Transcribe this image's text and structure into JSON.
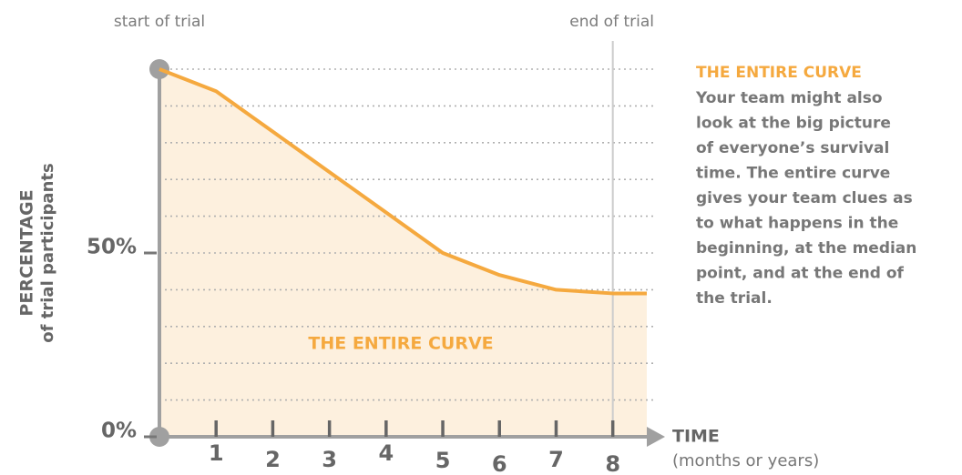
{
  "chart_data": {
    "type": "line",
    "x": [
      0,
      1,
      2,
      3,
      4,
      5,
      6,
      7,
      8,
      8.6
    ],
    "series": [
      {
        "name": "THE ENTIRE CURVE",
        "color": "#f5a93f",
        "fill": "#fdf0de",
        "values": [
          100,
          94,
          83,
          72,
          61,
          50,
          44,
          40,
          39,
          39
        ]
      }
    ],
    "xlim": [
      0,
      8.6
    ],
    "ylim": [
      0,
      100
    ],
    "xticks": [
      1,
      2,
      3,
      4,
      5,
      6,
      7,
      8
    ],
    "yticks": [
      {
        "value": 0,
        "label": "0%"
      },
      {
        "value": 50,
        "label": "50%"
      }
    ],
    "ygrid": [
      10,
      20,
      30,
      40,
      50,
      60,
      70,
      80,
      90,
      100
    ],
    "ylabel": [
      "PERCENTAGE",
      "of trial participants"
    ],
    "xlabel": [
      "TIME",
      "(months or years)"
    ],
    "annotations": [
      {
        "text": "start of trial",
        "x": 0
      },
      {
        "text": "end of trial",
        "x": 8
      }
    ],
    "side_panel": {
      "heading": "THE ENTIRE CURVE",
      "lines": [
        "Your team might also",
        "look at the big picture",
        "of everyone’s survival",
        "time. The entire curve",
        "gives your team clues as",
        "to what happens in the",
        "beginning, at the median",
        "point, and at the end of",
        "the trial."
      ]
    }
  }
}
